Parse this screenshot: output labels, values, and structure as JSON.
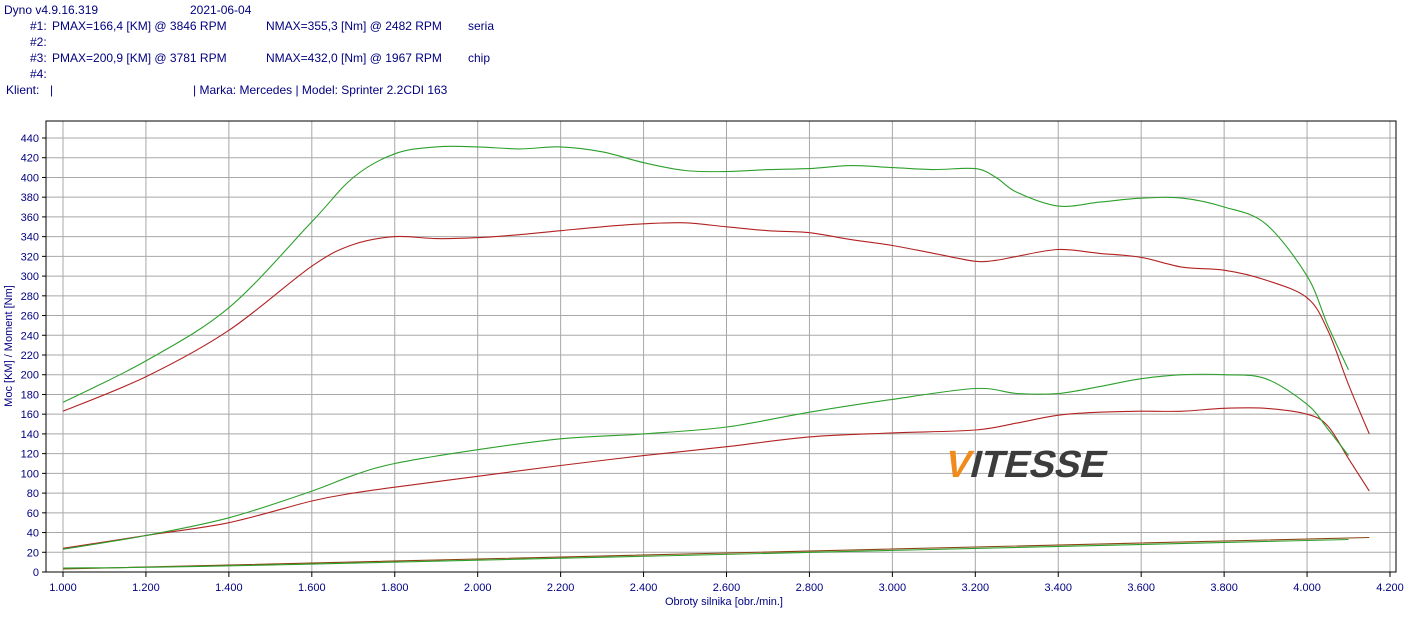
{
  "header": {
    "app": "Dyno v4.9.16.319",
    "date": "2021-06-04",
    "runs": [
      {
        "id": "#1:",
        "pmax": "PMAX=166,4 [KM] @ 3846 RPM",
        "nmax": "NMAX=355,3 [Nm] @ 2482 RPM",
        "label": "seria"
      },
      {
        "id": "#2:",
        "pmax": "",
        "nmax": "",
        "label": ""
      },
      {
        "id": "#3:",
        "pmax": "PMAX=200,9 [KM] @ 3781 RPM",
        "nmax": "NMAX=432,0 [Nm] @ 1967 RPM",
        "label": "chip"
      },
      {
        "id": "#4:",
        "pmax": "",
        "nmax": "",
        "label": ""
      }
    ],
    "client_label": "Klient:",
    "client_value": "|",
    "vehicle": "| Marka: Mercedes | Model: Sprinter 2.2CDI 163"
  },
  "watermark": {
    "first": "V",
    "rest": "ITESSE",
    "first_color": "#f08a1c",
    "rest_color": "#3c3c3c"
  },
  "chart_data": {
    "type": "line",
    "xlabel": "Obroty silnika [obr./min.]",
    "ylabel": "Moc [KM] / Moment [Nm]",
    "xlim": [
      1000,
      4200
    ],
    "ylim": [
      0,
      450
    ],
    "x_ticks": [
      1000,
      1200,
      1400,
      1600,
      1800,
      2000,
      2200,
      2400,
      2600,
      2800,
      3000,
      3200,
      3400,
      3600,
      3800,
      4000,
      4200
    ],
    "x_tick_labels": [
      "1.000",
      "1.200",
      "1.400",
      "1.600",
      "1.800",
      "2.000",
      "2.200",
      "2.400",
      "2.600",
      "2.800",
      "3.000",
      "3.200",
      "3.400",
      "3.600",
      "3.800",
      "4.000",
      "4.200"
    ],
    "y_ticks": [
      0,
      20,
      40,
      60,
      80,
      100,
      120,
      140,
      160,
      180,
      200,
      220,
      240,
      260,
      280,
      300,
      320,
      340,
      360,
      380,
      400,
      420,
      440
    ],
    "grid": true,
    "series": [
      {
        "color": "#b22222",
        "x": [
          1000,
          1200,
          1400,
          1600,
          1700,
          1800,
          1900,
          2000,
          2100,
          2200,
          2300,
          2400,
          2500,
          2600,
          2700,
          2800,
          2900,
          3000,
          3100,
          3200,
          3250,
          3300,
          3400,
          3500,
          3600,
          3700,
          3800,
          3900,
          4000,
          4050,
          4100,
          4150
        ],
        "values": [
          163,
          198,
          245,
          310,
          332,
          340,
          338,
          339,
          342,
          346,
          350,
          353,
          354,
          350,
          346,
          344,
          337,
          331,
          323,
          315,
          316,
          320,
          327,
          323,
          319,
          309,
          306,
          296,
          278,
          245,
          190,
          140
        ]
      },
      {
        "color": "#2ca02c",
        "x": [
          1000,
          1200,
          1400,
          1600,
          1700,
          1800,
          1900,
          2000,
          2100,
          2200,
          2300,
          2400,
          2500,
          2600,
          2700,
          2800,
          2900,
          3000,
          3100,
          3200,
          3250,
          3300,
          3400,
          3500,
          3600,
          3700,
          3800,
          3900,
          4000,
          4050,
          4100
        ],
        "values": [
          172,
          214,
          268,
          355,
          400,
          424,
          431,
          431,
          429,
          431,
          426,
          415,
          407,
          406,
          408,
          409,
          412,
          410,
          408,
          409,
          400,
          385,
          371,
          375,
          379,
          379,
          370,
          353,
          300,
          250,
          205
        ]
      },
      {
        "color": "#b22222",
        "x": [
          1000,
          1200,
          1400,
          1600,
          1700,
          1800,
          2000,
          2200,
          2400,
          2600,
          2800,
          3000,
          3200,
          3300,
          3400,
          3500,
          3600,
          3700,
          3800,
          3900,
          4000,
          4050,
          4100,
          4150
        ],
        "values": [
          24,
          37,
          50,
          72,
          80,
          86,
          97,
          108,
          118,
          127,
          137,
          141,
          144,
          151,
          159,
          162,
          163,
          163,
          166,
          166,
          160,
          148,
          115,
          82
        ]
      },
      {
        "color": "#2ca02c",
        "x": [
          1000,
          1200,
          1400,
          1600,
          1700,
          1800,
          2000,
          2200,
          2400,
          2600,
          2800,
          3000,
          3200,
          3300,
          3400,
          3500,
          3600,
          3700,
          3800,
          3900,
          4000,
          4050,
          4100
        ],
        "values": [
          23,
          37,
          55,
          82,
          98,
          110,
          124,
          135,
          140,
          147,
          162,
          175,
          186,
          181,
          181,
          188,
          196,
          200,
          200,
          196,
          170,
          145,
          118
        ]
      },
      {
        "color": "#8b4513",
        "x": [
          1000,
          4150
        ],
        "values": [
          3,
          35
        ]
      },
      {
        "color": "#2ca02c",
        "x": [
          1000,
          1600,
          4100
        ],
        "values": [
          4,
          8,
          33
        ]
      }
    ]
  }
}
